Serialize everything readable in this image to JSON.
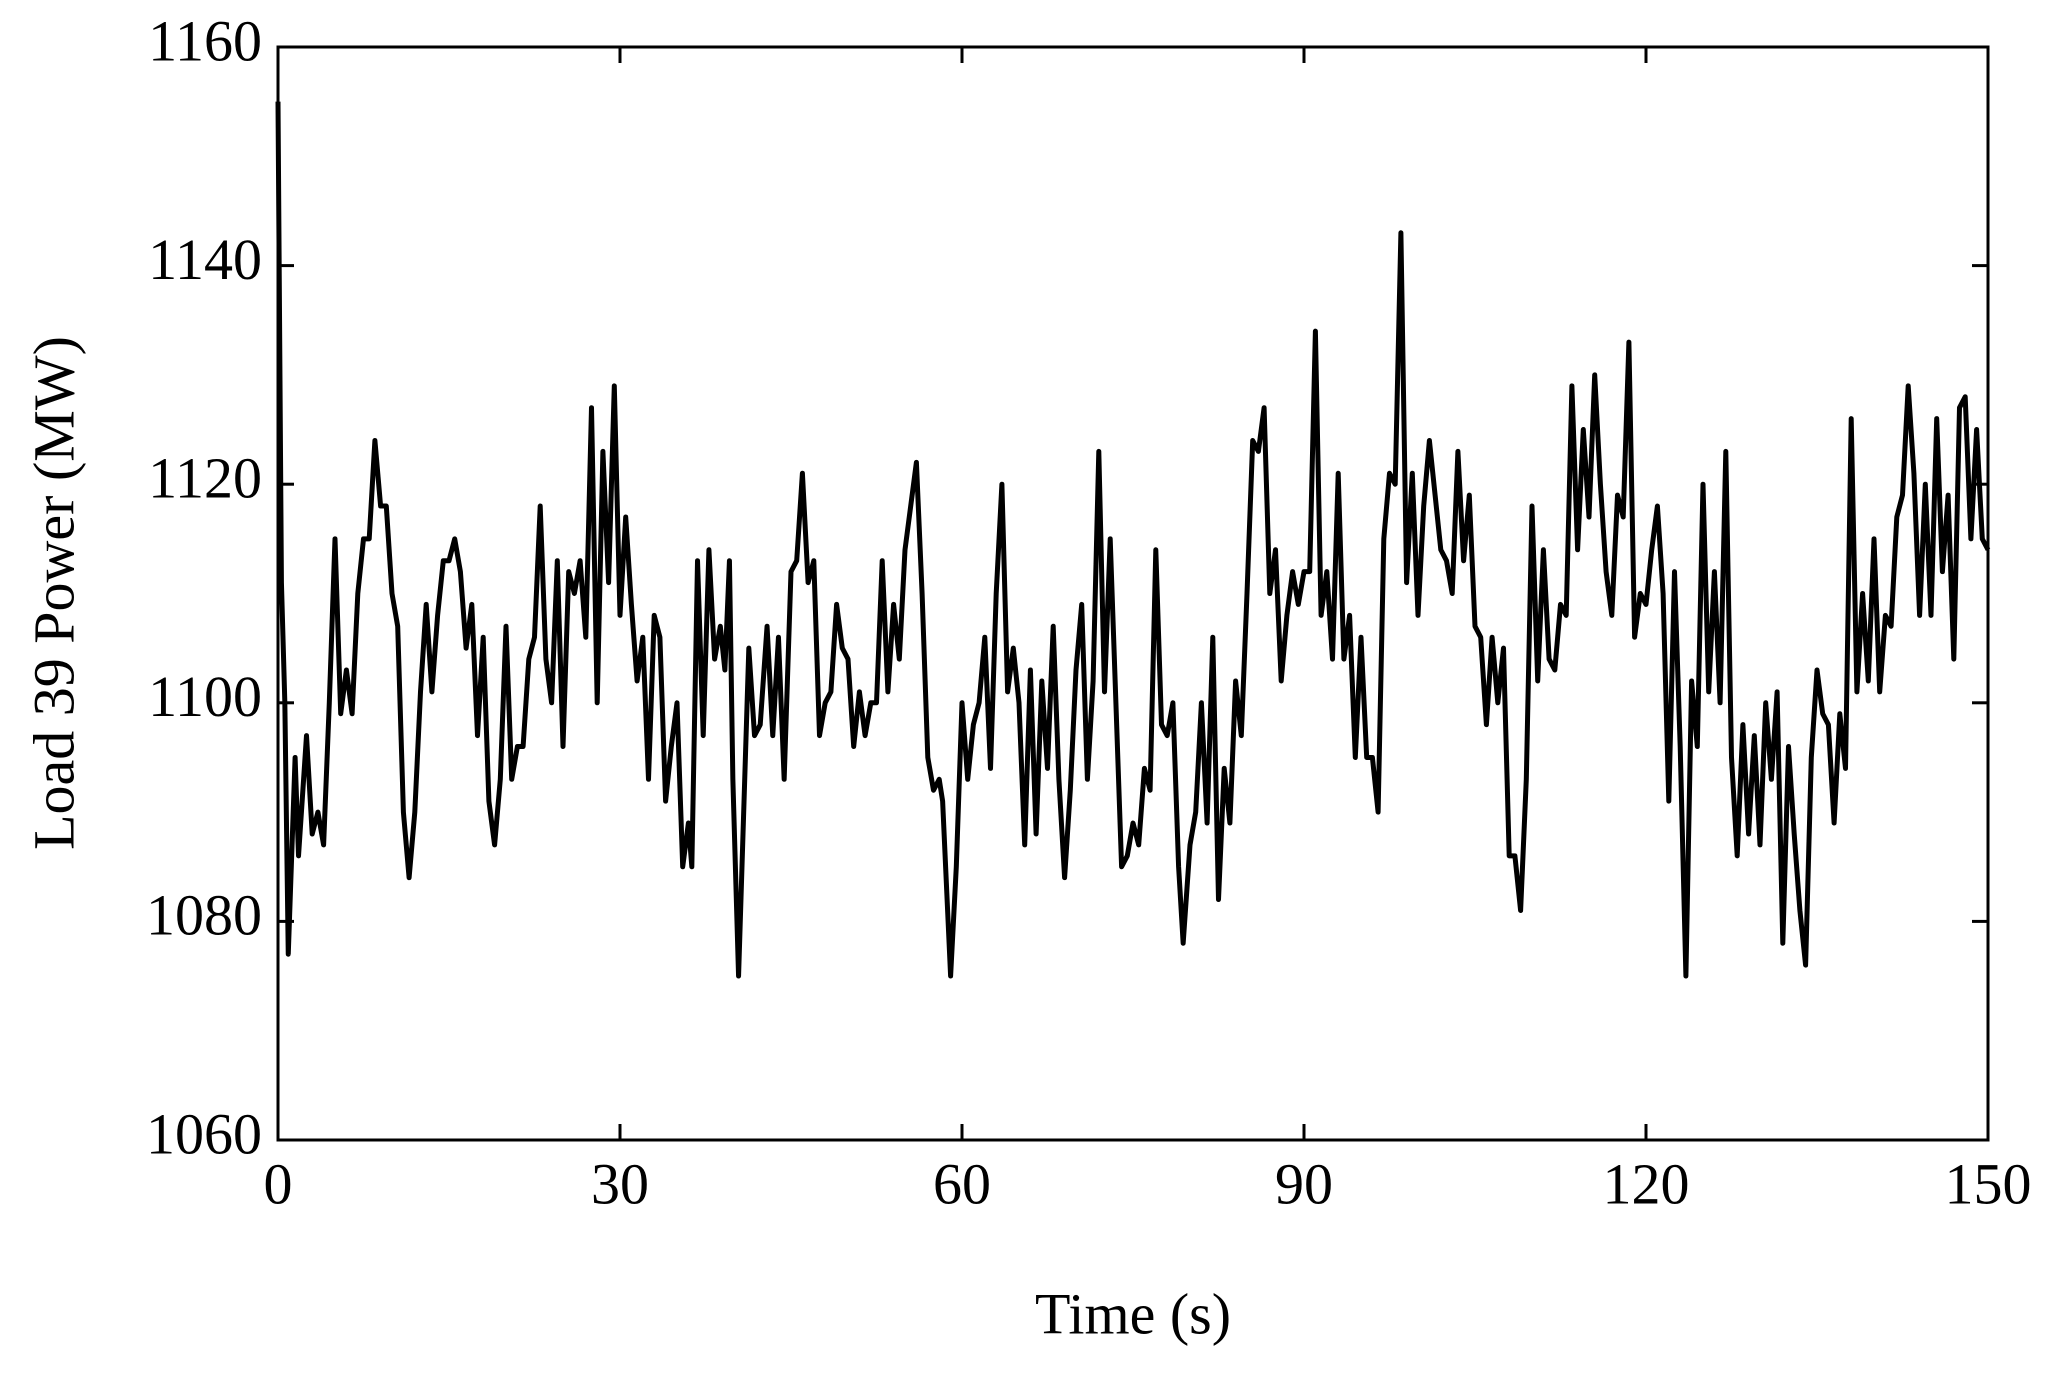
{
  "chart_data": {
    "type": "line",
    "xlabel": "Time (s)",
    "ylabel": "Load 39 Power (MW)",
    "xlim": [
      0,
      150
    ],
    "ylim": [
      1060,
      1160
    ],
    "xticks": [
      0,
      30,
      60,
      90,
      120,
      150
    ],
    "yticks": [
      1060,
      1080,
      1100,
      1120,
      1140,
      1160
    ],
    "x": [
      0,
      0.3,
      0.6,
      0.9,
      1.5,
      1.8,
      2.5,
      3.0,
      3.5,
      4.0,
      4.5,
      5.0,
      5.5,
      6.0,
      6.5,
      7.0,
      7.5,
      8.0,
      8.5,
      9.0,
      9.5,
      10.0,
      10.5,
      11.0,
      11.5,
      12.0,
      12.5,
      13.0,
      13.5,
      14.0,
      14.5,
      15.0,
      15.5,
      16.0,
      16.5,
      17.0,
      17.5,
      18.0,
      18.5,
      19.0,
      19.5,
      20.0,
      20.5,
      21.0,
      21.5,
      22.0,
      22.5,
      23.0,
      23.5,
      24.0,
      24.5,
      25.0,
      25.5,
      26.0,
      26.5,
      27.0,
      27.5,
      28.0,
      28.5,
      29.0,
      29.5,
      30.0,
      30.5,
      31.0,
      31.5,
      32.0,
      32.5,
      33.0,
      33.5,
      34.0,
      34.5,
      35.0,
      35.5,
      36.0,
      36.3,
      36.8,
      37.3,
      37.8,
      38.3,
      38.8,
      39.2,
      39.6,
      39.9,
      40.4,
      41.3,
      41.8,
      42.3,
      42.9,
      43.4,
      43.9,
      44.4,
      45.0,
      45.5,
      46.0,
      46.5,
      47.0,
      47.5,
      48.0,
      48.5,
      49.0,
      49.5,
      50.0,
      50.5,
      51.0,
      51.5,
      52.0,
      52.5,
      53.0,
      53.5,
      54.0,
      54.5,
      55.0,
      55.5,
      56.0,
      56.5,
      57.0,
      57.5,
      58.0,
      58.3,
      59.0,
      59.5,
      60.0,
      60.5,
      61.0,
      61.5,
      62.0,
      62.5,
      63.0,
      63.5,
      64.0,
      64.5,
      65.0,
      65.5,
      66.0,
      66.5,
      67.0,
      67.5,
      68.0,
      68.5,
      69.0,
      69.5,
      70.0,
      70.5,
      71.0,
      71.5,
      72.0,
      72.5,
      73.0,
      73.5,
      74.0,
      74.5,
      75.0,
      75.5,
      76.0,
      76.5,
      77.0,
      77.5,
      78.0,
      78.5,
      79.0,
      79.4,
      80.0,
      80.5,
      81.0,
      81.5,
      82.0,
      82.5,
      83.0,
      83.5,
      84.0,
      84.5,
      85.0,
      85.5,
      86.0,
      86.5,
      87.0,
      87.5,
      88.0,
      88.5,
      89.0,
      89.5,
      90.0,
      90.5,
      91.0,
      91.5,
      92.0,
      92.5,
      93.0,
      93.5,
      94.0,
      94.5,
      95.0,
      95.5,
      96.0,
      96.5,
      97.0,
      97.5,
      98.0,
      98.5,
      99.0,
      99.5,
      100.0,
      100.5,
      101.0,
      101.5,
      102.0,
      102.5,
      103.0,
      103.5,
      104.0,
      104.5,
      105.0,
      105.5,
      106.0,
      106.5,
      107.0,
      107.5,
      108.0,
      108.5,
      109.0,
      109.5,
      110.0,
      110.5,
      111.0,
      111.5,
      112.0,
      112.5,
      113.0,
      113.5,
      114.0,
      114.5,
      115.0,
      115.5,
      116.0,
      116.5,
      117.0,
      117.5,
      118.0,
      118.5,
      119.0,
      119.5,
      120.0,
      120.5,
      121.0,
      121.5,
      122.0,
      122.5,
      123.0,
      123.5,
      124.0,
      124.5,
      125.0,
      125.5,
      126.0,
      126.5,
      127.0,
      127.5,
      128.0,
      128.5,
      129.0,
      129.5,
      130.0,
      130.5,
      131.0,
      131.5,
      132.0,
      132.5,
      133.0,
      133.5,
      134.0,
      134.5,
      135.0,
      135.5,
      136.0,
      136.5,
      137.0,
      137.5,
      138.0,
      138.5,
      139.0,
      139.5,
      140.0,
      140.5,
      141.0,
      141.5,
      142.0,
      142.5,
      143.0,
      143.5,
      144.0,
      144.5,
      145.0,
      145.5,
      146.0,
      146.5,
      147.0,
      147.5,
      148.0,
      148.5,
      149.0,
      149.5,
      150.0
    ],
    "series": [
      {
        "name": "Load 39 Power",
        "color": "#000000",
        "values": [
          1155,
          1111,
          1100,
          1077,
          1095,
          1086,
          1097,
          1088,
          1090,
          1087,
          1100,
          1115,
          1099,
          1103,
          1099,
          1110,
          1115,
          1115,
          1124,
          1118,
          1118,
          1110,
          1107,
          1090,
          1084,
          1090,
          1101,
          1109,
          1101,
          1108,
          1113,
          1113,
          1115,
          1112,
          1105,
          1109,
          1097,
          1106,
          1091,
          1087,
          1093,
          1107,
          1093,
          1096,
          1096,
          1104,
          1106,
          1118,
          1104,
          1100,
          1113,
          1096,
          1112,
          1110,
          1113,
          1106,
          1127,
          1100,
          1123,
          1111,
          1129,
          1108,
          1117,
          1109,
          1102,
          1106,
          1093,
          1108,
          1106,
          1091,
          1096,
          1100,
          1085,
          1089,
          1085,
          1113,
          1097,
          1114,
          1104,
          1107,
          1103,
          1113,
          1093,
          1075,
          1105,
          1097,
          1098,
          1107,
          1097,
          1106,
          1093,
          1112,
          1113,
          1121,
          1111,
          1113,
          1097,
          1100,
          1101,
          1109,
          1105,
          1104,
          1096,
          1101,
          1097,
          1100,
          1100,
          1113,
          1101,
          1109,
          1104,
          1114,
          1118,
          1122,
          1110,
          1095,
          1092,
          1093,
          1091,
          1075,
          1085,
          1100,
          1093,
          1098,
          1100,
          1106,
          1094,
          1110,
          1120,
          1101,
          1105,
          1100,
          1087,
          1103,
          1088,
          1102,
          1094,
          1107,
          1093,
          1084,
          1092,
          1103,
          1109,
          1093,
          1102,
          1123,
          1101,
          1115,
          1100,
          1085,
          1086,
          1089,
          1087,
          1094,
          1092,
          1114,
          1098,
          1097,
          1100,
          1085,
          1078,
          1087,
          1090,
          1100,
          1089,
          1106,
          1082,
          1094,
          1089,
          1102,
          1097,
          1110,
          1124,
          1123,
          1127,
          1110,
          1114,
          1102,
          1108,
          1112,
          1109,
          1112,
          1112,
          1134,
          1108,
          1112,
          1104,
          1121,
          1104,
          1108,
          1095,
          1106,
          1095,
          1095,
          1090,
          1115,
          1121,
          1120,
          1143,
          1111,
          1121,
          1108,
          1118,
          1124,
          1119,
          1114,
          1113,
          1110,
          1123,
          1113,
          1119,
          1107,
          1106,
          1098,
          1106,
          1100,
          1105,
          1086,
          1086,
          1081,
          1093,
          1118,
          1102,
          1114,
          1104,
          1103,
          1109,
          1108,
          1129,
          1114,
          1125,
          1117,
          1130,
          1120,
          1112,
          1108,
          1119,
          1117,
          1133,
          1106,
          1110,
          1109,
          1114,
          1118,
          1110,
          1091,
          1112,
          1096,
          1075,
          1102,
          1096,
          1120,
          1101,
          1112,
          1100,
          1123,
          1095,
          1086,
          1098,
          1088,
          1097,
          1087,
          1100,
          1093,
          1101,
          1078,
          1096,
          1088,
          1081,
          1076,
          1095,
          1103,
          1099,
          1098,
          1089,
          1099,
          1094,
          1126,
          1101,
          1110,
          1102,
          1115,
          1101,
          1108,
          1107,
          1117,
          1119,
          1129,
          1121,
          1108,
          1120,
          1108,
          1126,
          1112,
          1119,
          1104,
          1127,
          1128,
          1115,
          1125,
          1115,
          1114
        ]
      }
    ]
  }
}
